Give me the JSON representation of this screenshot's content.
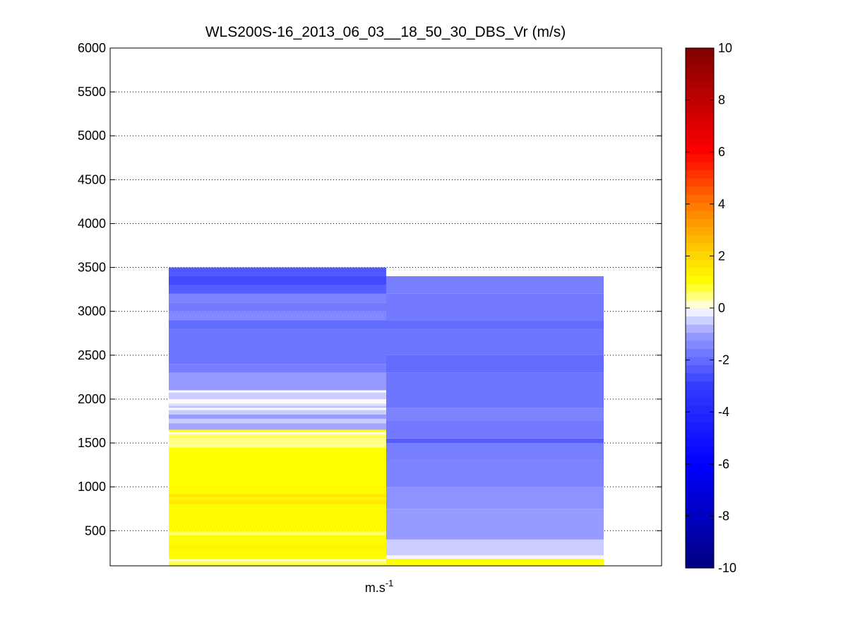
{
  "chart_data": {
    "type": "heatmap",
    "title": "WLS200S-16_2013_06_03__18_50_30_DBS_Vr (m/s)",
    "xlabel": "m.s",
    "xlabel_superscript": "-1",
    "ylabel": "",
    "ylim": [
      100,
      6000
    ],
    "yticks": [
      500,
      1000,
      1500,
      2000,
      2500,
      3000,
      3500,
      4000,
      4500,
      5000,
      5500,
      6000
    ],
    "grid": "y-dotted",
    "colorbar": {
      "ticks": [
        -10,
        -8,
        -6,
        -4,
        -2,
        0,
        2,
        4,
        6,
        8,
        10
      ],
      "range": [
        -10,
        10
      ],
      "colormap": "blue-white-yellow-red"
    },
    "columns": [
      {
        "segments": [
          {
            "y0": 100,
            "y1": 130,
            "v": 0.8
          },
          {
            "y0": 130,
            "y1": 160,
            "v": 0.5
          },
          {
            "y0": 160,
            "y1": 180,
            "v": 0.1
          },
          {
            "y0": 180,
            "y1": 200,
            "v": 1.0
          },
          {
            "y0": 200,
            "y1": 280,
            "v": 1.1
          },
          {
            "y0": 280,
            "y1": 350,
            "v": 1.2
          },
          {
            "y0": 350,
            "y1": 450,
            "v": 1.1
          },
          {
            "y0": 450,
            "y1": 475,
            "v": 0.5
          },
          {
            "y0": 475,
            "y1": 500,
            "v": 0.8
          },
          {
            "y0": 500,
            "y1": 700,
            "v": 1.1
          },
          {
            "y0": 700,
            "y1": 800,
            "v": 1.1
          },
          {
            "y0": 800,
            "y1": 850,
            "v": 1.5
          },
          {
            "y0": 850,
            "y1": 880,
            "v": 1.3
          },
          {
            "y0": 880,
            "y1": 920,
            "v": 1.6
          },
          {
            "y0": 920,
            "y1": 1000,
            "v": 1.1
          },
          {
            "y0": 1000,
            "y1": 1450,
            "v": 1.0
          },
          {
            "y0": 1450,
            "y1": 1550,
            "v": 0.4
          },
          {
            "y0": 1550,
            "y1": 1600,
            "v": 0.6
          },
          {
            "y0": 1600,
            "y1": 1625,
            "v": 0.1
          },
          {
            "y0": 1625,
            "y1": 1650,
            "v": 1.0
          },
          {
            "y0": 1650,
            "y1": 1725,
            "v": -0.9
          },
          {
            "y0": 1725,
            "y1": 1775,
            "v": -0.5
          },
          {
            "y0": 1775,
            "y1": 1825,
            "v": -1.0
          },
          {
            "y0": 1825,
            "y1": 1875,
            "v": -0.5
          },
          {
            "y0": 1875,
            "y1": 1900,
            "v": -0.05
          },
          {
            "y0": 1900,
            "y1": 1925,
            "v": -0.6
          },
          {
            "y0": 1925,
            "y1": 1950,
            "v": -0.3
          },
          {
            "y0": 1950,
            "y1": 2000,
            "v": -0.05
          },
          {
            "y0": 2000,
            "y1": 2075,
            "v": -0.5
          },
          {
            "y0": 2075,
            "y1": 2100,
            "v": -0.05
          },
          {
            "y0": 2100,
            "y1": 2300,
            "v": -1.0
          },
          {
            "y0": 2300,
            "y1": 2400,
            "v": -1.6
          },
          {
            "y0": 2400,
            "y1": 2800,
            "v": -1.8
          },
          {
            "y0": 2800,
            "y1": 2900,
            "v": -2.0
          },
          {
            "y0": 2900,
            "y1": 3000,
            "v": -1.4
          },
          {
            "y0": 3000,
            "y1": 3100,
            "v": -1.7
          },
          {
            "y0": 3100,
            "y1": 3200,
            "v": -1.5
          },
          {
            "y0": 3200,
            "y1": 3300,
            "v": -2.3
          },
          {
            "y0": 3300,
            "y1": 3400,
            "v": -2.7
          },
          {
            "y0": 3400,
            "y1": 3500,
            "v": -2.4
          }
        ]
      },
      {
        "segments": [
          {
            "y0": 100,
            "y1": 180,
            "v": 1.0
          },
          {
            "y0": 180,
            "y1": 220,
            "v": -0.1
          },
          {
            "y0": 220,
            "y1": 400,
            "v": -0.5
          },
          {
            "y0": 400,
            "y1": 750,
            "v": -1.0
          },
          {
            "y0": 750,
            "y1": 1000,
            "v": -1.2
          },
          {
            "y0": 1000,
            "y1": 1300,
            "v": -1.5
          },
          {
            "y0": 1300,
            "y1": 1500,
            "v": -1.6
          },
          {
            "y0": 1500,
            "y1": 1550,
            "v": -2.3
          },
          {
            "y0": 1550,
            "y1": 1750,
            "v": -1.7
          },
          {
            "y0": 1750,
            "y1": 1900,
            "v": -1.5
          },
          {
            "y0": 1900,
            "y1": 2300,
            "v": -1.8
          },
          {
            "y0": 2300,
            "y1": 2500,
            "v": -2.0
          },
          {
            "y0": 2500,
            "y1": 2800,
            "v": -1.8
          },
          {
            "y0": 2800,
            "y1": 2900,
            "v": -2.0
          },
          {
            "y0": 2900,
            "y1": 3200,
            "v": -1.7
          },
          {
            "y0": 3200,
            "y1": 3400,
            "v": -1.6
          }
        ]
      }
    ]
  }
}
